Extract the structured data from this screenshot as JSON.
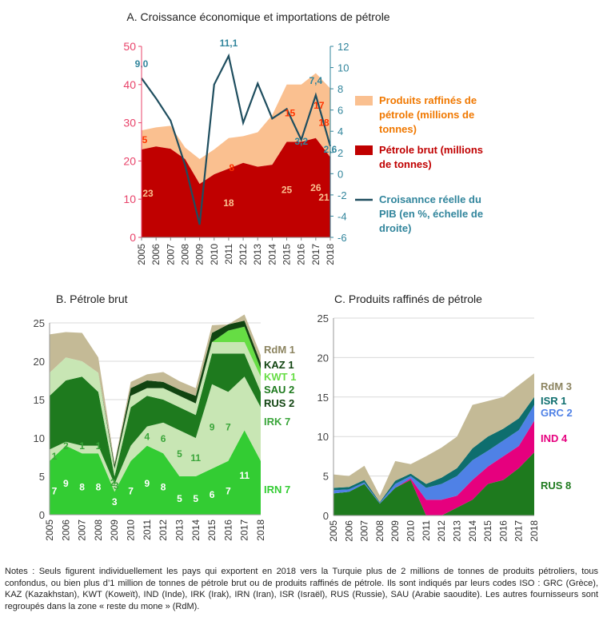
{
  "chart_data": [
    {
      "panel": "A",
      "type": "area",
      "title": "A. Croissance économique et importations de pétrole",
      "categories": [
        "2005",
        "2006",
        "2007",
        "2008",
        "2009",
        "2010",
        "2011",
        "2012",
        "2013",
        "2014",
        "2015",
        "2016",
        "2017",
        "2018"
      ],
      "ylim": [
        0,
        50
      ],
      "yticks": [
        "0",
        "10",
        "20",
        "30",
        "40",
        "50"
      ],
      "y2lim": [
        -6,
        12
      ],
      "y2ticks": [
        "-6",
        "-4",
        "-2",
        "0",
        "2",
        "4",
        "6",
        "8",
        "10",
        "12"
      ],
      "stacked": true,
      "grid": false,
      "legend_position": "right",
      "series": [
        {
          "name": "Pétrole brut (millions de tonnes)",
          "type": "area",
          "color": "#c00000",
          "values": [
            23,
            23.8,
            23.2,
            20.5,
            14,
            16.5,
            18,
            19.5,
            18.5,
            19,
            25,
            25,
            26,
            21
          ]
        },
        {
          "name": "Produits raffinés de pétrole  (millions de tonnes)",
          "type": "area",
          "color": "#fac090",
          "values": [
            5,
            5,
            6,
            3,
            6.5,
            6.5,
            8,
            7,
            9,
            13,
            15,
            15,
            17,
            18
          ]
        },
        {
          "name": "Croisannce réelle du PIB (en %, échelle de droite)",
          "type": "line",
          "color": "#1f4e5f",
          "values": [
            9.0,
            7.1,
            5.0,
            0.8,
            -4.8,
            8.4,
            11.1,
            4.8,
            8.5,
            5.2,
            6.1,
            3.2,
            7.4,
            2.6
          ]
        }
      ],
      "data_labels": [
        {
          "text": "9,0",
          "color": "#31859c"
        },
        {
          "text": "11,1",
          "color": "#31859c"
        },
        {
          "text": "3,2",
          "color": "#31859c"
        },
        {
          "text": "7,4",
          "color": "#31859c"
        },
        {
          "text": "2,6",
          "color": "#31859c"
        },
        {
          "text": "5",
          "color": "#ff3300"
        },
        {
          "text": "8",
          "color": "#ff3300"
        },
        {
          "text": "15",
          "color": "#ff3300"
        },
        {
          "text": "17",
          "color": "#ff3300"
        },
        {
          "text": "18",
          "color": "#ff3300"
        },
        {
          "text": "23",
          "color": "#fac090"
        },
        {
          "text": "18",
          "color": "#fac090"
        },
        {
          "text": "25",
          "color": "#fac090"
        },
        {
          "text": "26",
          "color": "#fac090"
        },
        {
          "text": "21",
          "color": "#fac090"
        }
      ]
    },
    {
      "panel": "B",
      "type": "area",
      "title": "B. Pétrole brut",
      "categories": [
        "2005",
        "2006",
        "2007",
        "2008",
        "2009",
        "2010",
        "2011",
        "2012",
        "2013",
        "2014",
        "2015",
        "2016",
        "2017",
        "2018"
      ],
      "ylim": [
        0,
        25
      ],
      "yticks": [
        "0",
        "5",
        "10",
        "15",
        "20",
        "25"
      ],
      "stacked": true,
      "grid": true,
      "legend_position": "right",
      "series": [
        {
          "name": "IRN 7",
          "color": "#33cc33",
          "values": [
            7,
            9,
            8,
            8,
            3,
            7,
            9,
            8,
            5,
            5,
            6,
            7,
            11,
            7
          ]
        },
        {
          "name": "IRK 7",
          "color": "#c8e6b4",
          "values": [
            1.5,
            0.5,
            1,
            1,
            1,
            2,
            2.5,
            4,
            6,
            5,
            11,
            9,
            7,
            7
          ]
        },
        {
          "name": "RUS 2",
          "color": "#1e7a1e",
          "values": [
            7,
            8,
            9,
            7,
            1,
            5,
            4,
            3,
            3,
            3,
            4,
            5,
            3,
            2
          ]
        },
        {
          "name": "SAU 2",
          "color": "#c8e6b4",
          "values": [
            3,
            3,
            2,
            2.5,
            1,
            1.5,
            1,
            1.5,
            1.5,
            1.5,
            1.5,
            1.5,
            1.5,
            2
          ]
        },
        {
          "name": "KWT 1",
          "color": "#66dd44",
          "values": [
            0,
            0,
            0,
            0,
            0,
            0,
            0,
            0,
            0,
            0,
            0,
            1.5,
            2,
            1
          ]
        },
        {
          "name": "KAZ 1",
          "color": "#114411",
          "values": [
            0,
            0,
            0,
            0,
            0.5,
            1,
            1,
            0.8,
            0.8,
            1,
            1.2,
            0.8,
            0.8,
            0.8
          ]
        },
        {
          "name": "RdM 1",
          "color": "#c4ba96",
          "values": [
            5,
            3.3,
            3.7,
            2,
            0.3,
            0.8,
            0.8,
            1.3,
            1.1,
            1,
            1,
            0,
            0.8,
            1
          ]
        }
      ],
      "data_labels": [
        "7",
        "9",
        "8",
        "8",
        "3",
        "7",
        "9",
        "8",
        "5",
        "5",
        "6",
        "7",
        "11",
        "2",
        "2",
        "1",
        "1",
        "1",
        "3",
        "4",
        "6",
        "5",
        "11",
        "9",
        "7"
      ]
    },
    {
      "panel": "C",
      "type": "area",
      "title": "C. Produits raffinés de pétrole",
      "categories": [
        "2005",
        "2006",
        "2007",
        "2008",
        "2009",
        "2010",
        "2011",
        "2012",
        "2013",
        "2014",
        "2015",
        "2016",
        "2017",
        "2018"
      ],
      "ylim": [
        0,
        25
      ],
      "yticks": [
        "0",
        "5",
        "10",
        "15",
        "20",
        "25"
      ],
      "stacked": true,
      "grid": true,
      "legend_position": "right",
      "series": [
        {
          "name": "RUS 8",
          "color": "#1e7a1e",
          "values": [
            2.8,
            3,
            4,
            1.5,
            3.5,
            4.5,
            0,
            0,
            1,
            2,
            4,
            4.5,
            6,
            8
          ]
        },
        {
          "name": "IND 4",
          "color": "#e6007e",
          "values": [
            0,
            0,
            0,
            0,
            0,
            0.2,
            2,
            2,
            1.5,
            2.5,
            2.2,
            3,
            2.8,
            4
          ]
        },
        {
          "name": "GRC 2",
          "color": "#4f81e6",
          "values": [
            0.4,
            0.3,
            0.2,
            0.1,
            0.5,
            0.3,
            1.5,
            2,
            2.5,
            2.5,
            2,
            2,
            2,
            2
          ]
        },
        {
          "name": "ISR 1",
          "color": "#0e6e6e",
          "values": [
            0.3,
            0.3,
            0.3,
            0.1,
            0.4,
            0.3,
            0.5,
            0.8,
            1,
            1.5,
            1.8,
            1.5,
            1.5,
            1
          ]
        },
        {
          "name": "RdM 3",
          "color": "#c4ba96",
          "values": [
            1.7,
            1.4,
            1.8,
            0.8,
            2.5,
            1.2,
            3.5,
            3.8,
            4,
            5.5,
            4.5,
            4,
            4.2,
            3
          ]
        }
      ]
    }
  ],
  "notes": "Notes : Seuls figurent individuellement les pays qui exportent en 2018 vers la Turquie plus de 2 millions de tonnes de produits pétroliers, tous confondus, ou bien plus d’1 million de tonnes de pétrole brut ou de produits raffinés de pétrole. Ils sont indiqués par leurs codes ISO : GRC (Grèce), KAZ (Kazakhstan), KWT (Koweït), IND (Inde), IRK (Irak), IRN (Iran), ISR (Israël), RUS (Russie), SAU (Arabie saoudite). Les autres fournisseurs sont regroupés dans la zone « reste du mone » (RdM)."
}
